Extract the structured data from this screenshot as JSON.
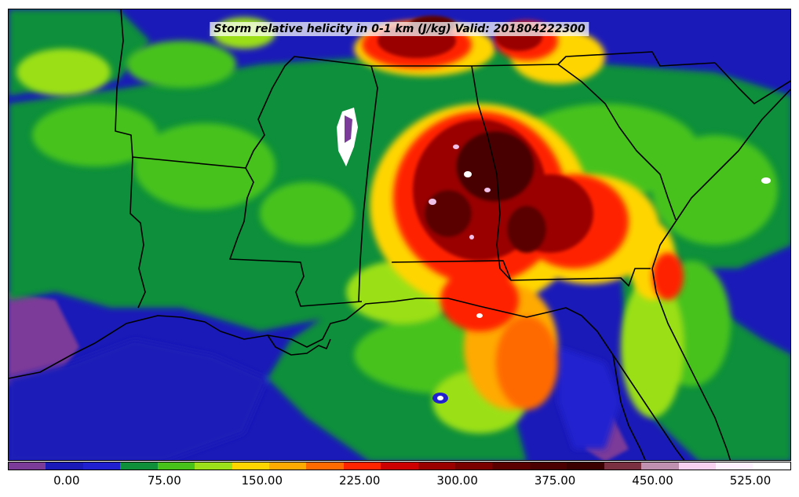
{
  "title": "Storm relative helicity in 0-1 km (J/kg) Valid: 201804222300",
  "colorbar": {
    "colors": [
      "#7b3b99",
      "#1a1ab8",
      "#2020d0",
      "#0f8f3a",
      "#47c21a",
      "#9be018",
      "#ffd500",
      "#ffaa00",
      "#ff6a00",
      "#ff2400",
      "#cc0000",
      "#9a0000",
      "#7a0000",
      "#5a0000",
      "#4a0000",
      "#3a0000",
      "#7a3040",
      "#c090b0",
      "#f8d0f0",
      "#fff0ff",
      "#ffffff"
    ],
    "tick_labels": [
      "0.00",
      "75.00",
      "150.00",
      "225.00",
      "300.00",
      "375.00",
      "450.00",
      "525.00"
    ],
    "tick_positions": [
      0.075,
      0.1997,
      0.3244,
      0.4491,
      0.5738,
      0.6985,
      0.8232,
      0.9479
    ]
  },
  "map": {
    "region": "Southeastern United States and Gulf of Mexico",
    "field_colors": {
      "ocean_low": "#1a1ab8",
      "low_negative": "#7b3b99",
      "green_low": "#0f8f3a",
      "green_mid": "#47c21a",
      "yellow_green": "#9be018",
      "yellow": "#ffd500",
      "orange": "#ff6a00",
      "red": "#ff2400",
      "dark_red": "#9a0000",
      "very_dark_red": "#4a0000",
      "pink_high": "#f0c0e8",
      "white_max": "#ffffff"
    },
    "boundary_color": "#000000"
  }
}
